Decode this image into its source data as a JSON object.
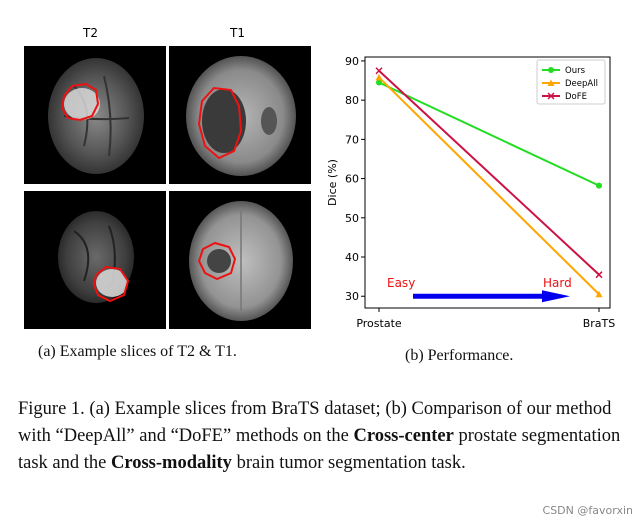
{
  "panel_a": {
    "column_labels": [
      "T2",
      "T1"
    ],
    "caption": "(a) Example slices of T2 & T1."
  },
  "panel_b": {
    "caption": "(b) Performance.",
    "annotations": {
      "easy": "Easy",
      "hard": "Hard"
    }
  },
  "chart_data": {
    "type": "line",
    "categories": [
      "Prostate",
      "BraTS"
    ],
    "ylabel": "Dice (%)",
    "xlabel": "",
    "ylim": [
      27,
      91
    ],
    "yticks": [
      30,
      40,
      50,
      60,
      70,
      80,
      90
    ],
    "grid": false,
    "legend": "top-right",
    "series": [
      {
        "name": "Ours",
        "values": [
          84.5,
          58.2
        ],
        "color": "#22dd22",
        "marker": "circle"
      },
      {
        "name": "DeepAll",
        "values": [
          85.8,
          30.5
        ],
        "color": "#ffa500",
        "marker": "triangle"
      },
      {
        "name": "DoFE",
        "values": [
          87.5,
          35.5
        ],
        "color": "#cc1144",
        "marker": "x"
      }
    ],
    "arrow": {
      "from": "Easy",
      "to": "Hard",
      "color": "#0000ee"
    }
  },
  "figure_caption": {
    "p1": "Figure 1. (a) Example slices from BraTS dataset; (b) Comparison of our method with “DeepAll” and “DoFE” methods on the ",
    "b1": "Cross-center",
    "p2": " prostate segmentation task and the ",
    "b2": "Cross-modality",
    "p3": " brain tumor segmentation task."
  },
  "watermark": "CSDN @favorxin"
}
